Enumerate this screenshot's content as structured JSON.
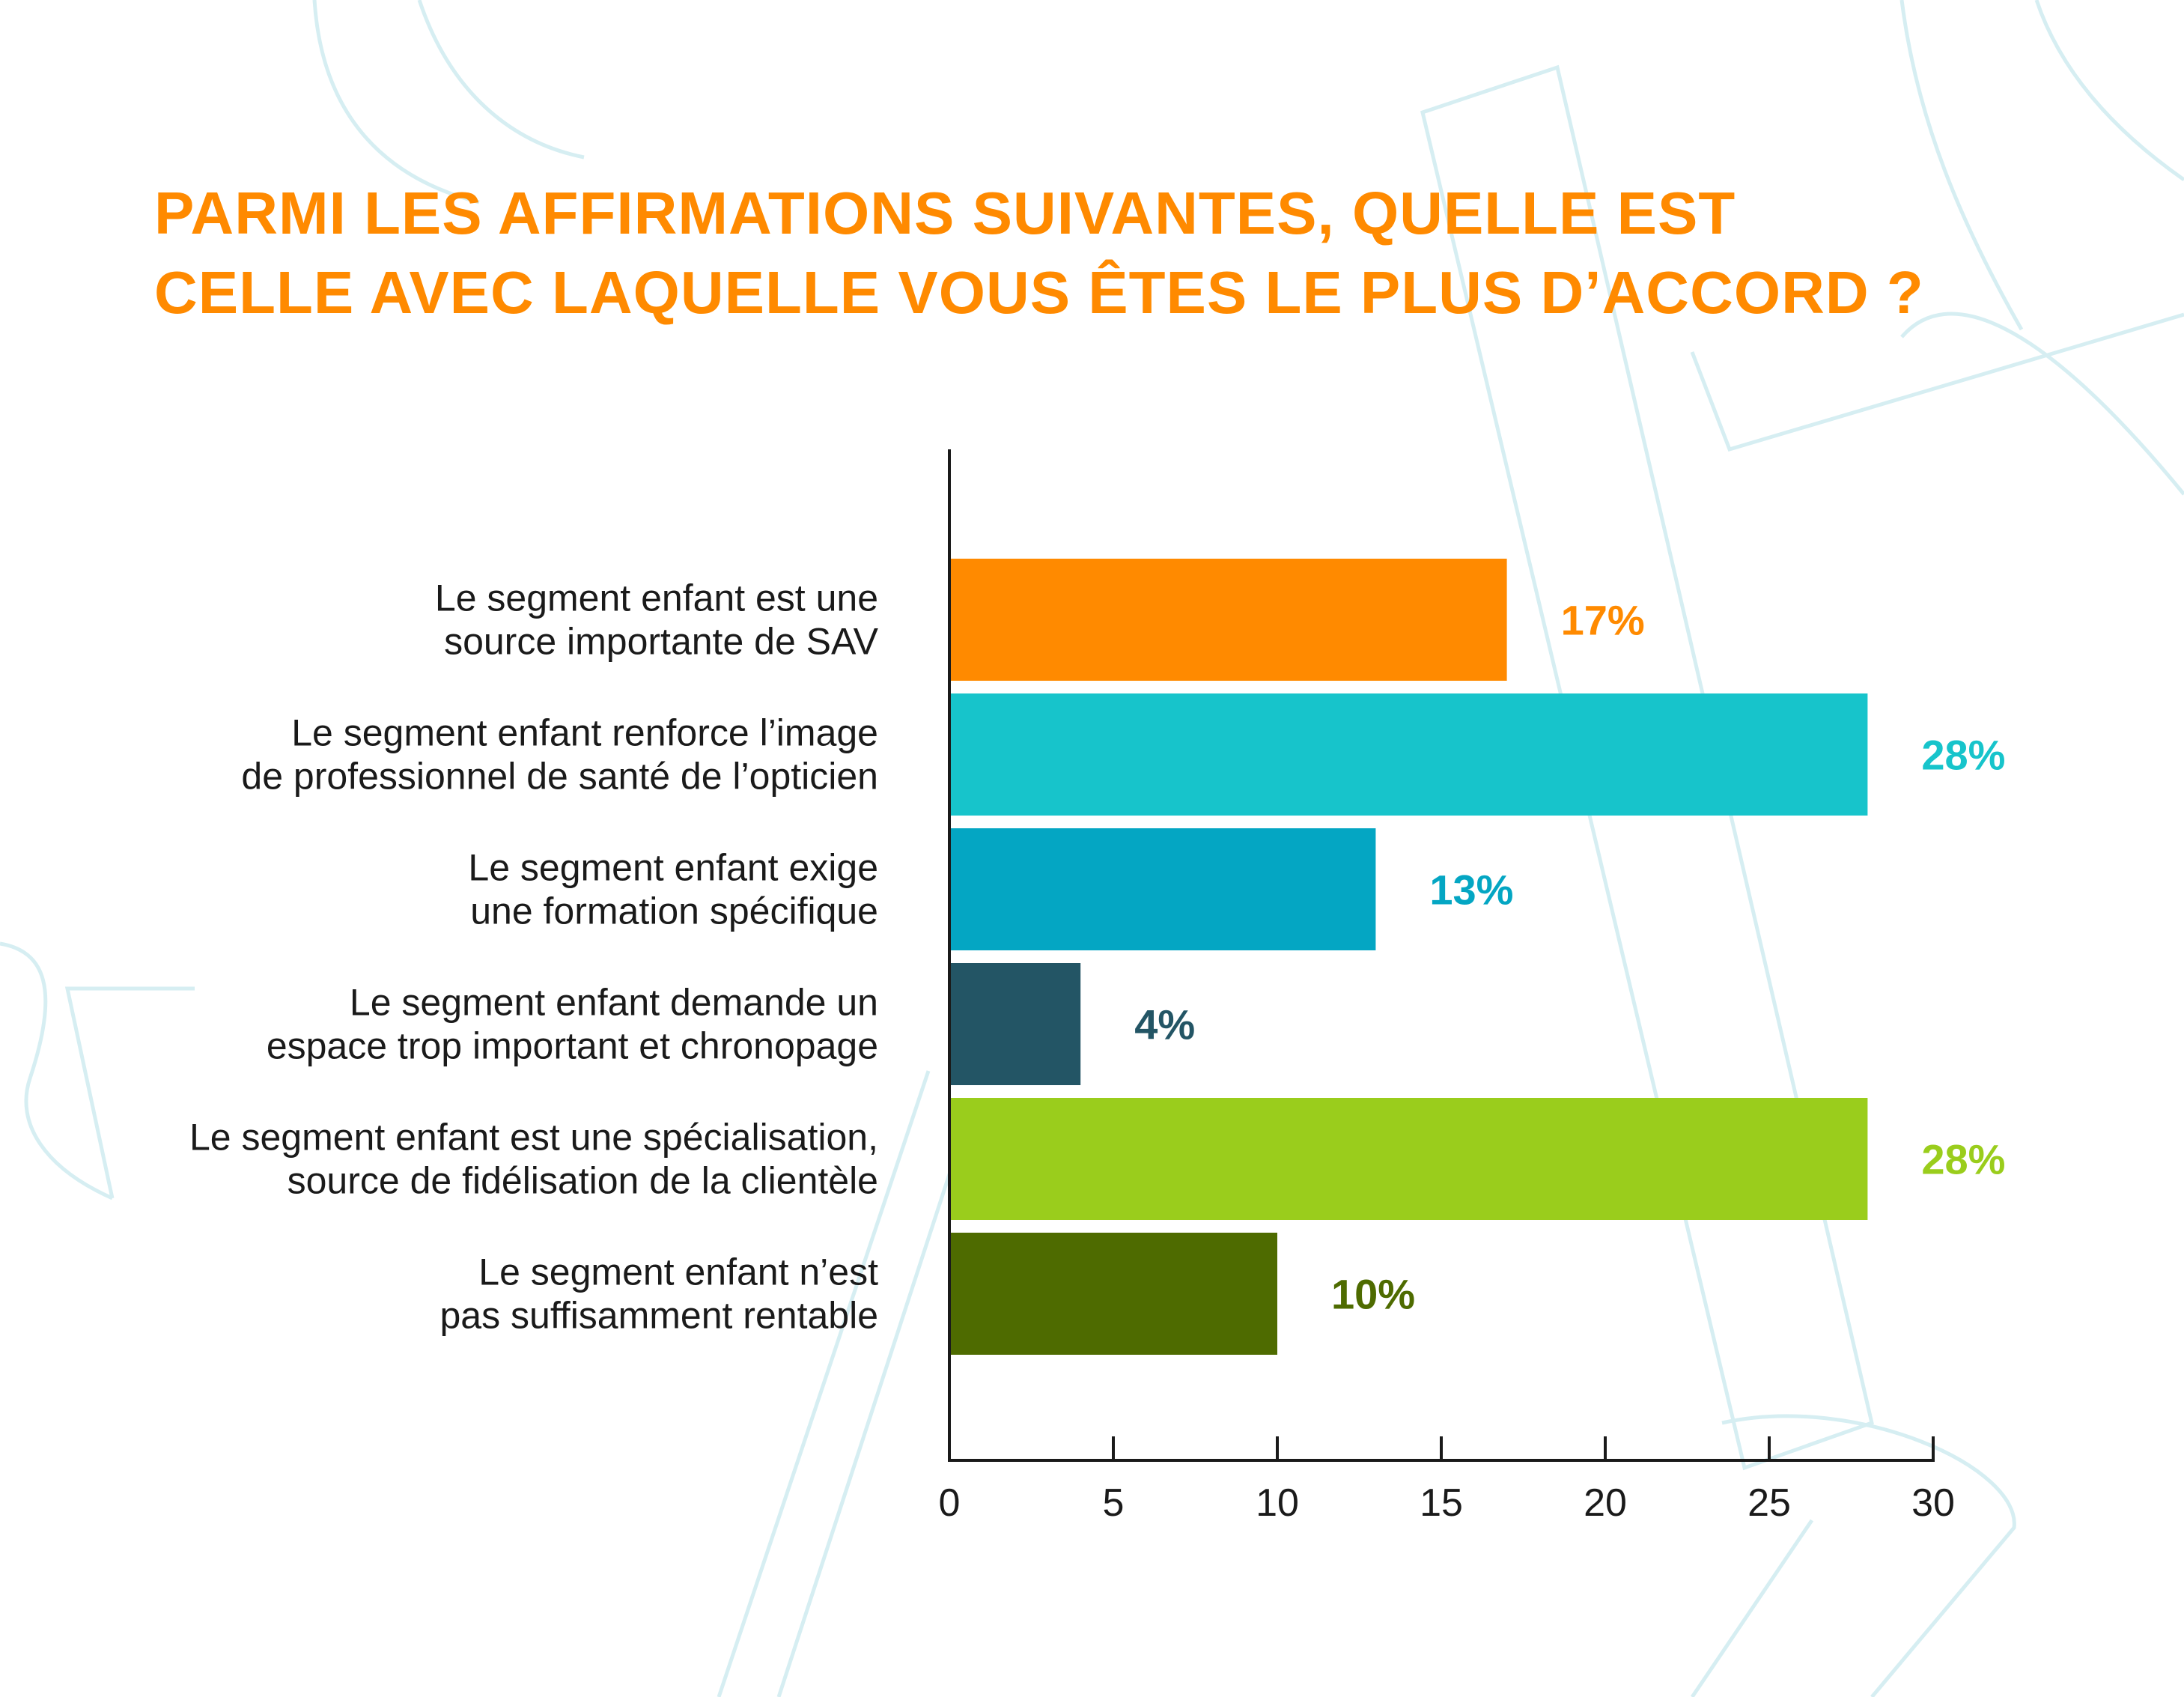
{
  "title_lines": [
    "PARMI LES AFFIRMATIONS SUIVANTES, QUELLE EST",
    "CELLE AVEC LAQUELLE VOUS ÊTES LE PLUS D’ACCORD ?"
  ],
  "colors": {
    "title": "#FF8A00",
    "axis": "#1a1a1a",
    "background_watermark": "#D6EEF2"
  },
  "chart_data": {
    "type": "bar",
    "orientation": "horizontal",
    "title": "PARMI LES AFFIRMATIONS SUIVANTES, QUELLE EST CELLE AVEC LAQUELLE VOUS ÊTES LE PLUS D’ACCORD ?",
    "xlim": [
      0,
      30
    ],
    "x_ticks": [
      "0",
      "5",
      "10",
      "15",
      "20",
      "25",
      "30"
    ],
    "x_tick_values": [
      0,
      5,
      10,
      15,
      20,
      25,
      30
    ],
    "grid": false,
    "legend": "none",
    "categories": [
      {
        "lines": [
          "Le segment enfant est une",
          "source importante de SAV"
        ],
        "value": 17,
        "label": "17%",
        "color": "#FF8A00"
      },
      {
        "lines": [
          "Le segment enfant renforce l’image",
          "de professionnel de santé de l’opticien"
        ],
        "value": 28,
        "label": "28%",
        "color": "#17C4CB"
      },
      {
        "lines": [
          "Le segment enfant exige",
          "une formation spécifique"
        ],
        "value": 13,
        "label": "13%",
        "color": "#04A6C3"
      },
      {
        "lines": [
          "Le segment enfant demande un",
          "espace trop important et chronopage"
        ],
        "value": 4,
        "label": "4%",
        "color": "#235565"
      },
      {
        "lines": [
          "Le segment enfant est une spécialisation,",
          "source de fidélisation de la clientèle"
        ],
        "value": 28,
        "label": "28%",
        "color": "#9ACD1C"
      },
      {
        "lines": [
          "Le segment enfant n’est",
          "pas suffisamment rentable"
        ],
        "value": 10,
        "label": "10%",
        "color": "#4E6B00"
      }
    ]
  }
}
